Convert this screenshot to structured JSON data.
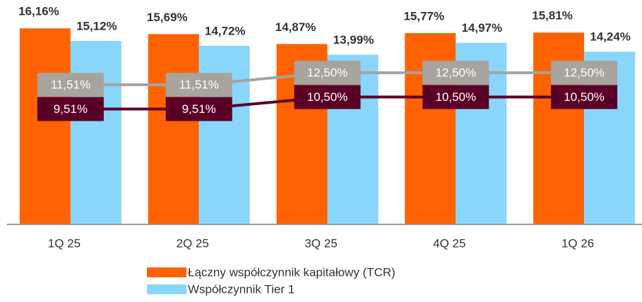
{
  "chart_data": {
    "type": "bar",
    "categories": [
      "1Q 25",
      "2Q 25",
      "3Q 25",
      "4Q 25",
      "1Q 26"
    ],
    "ylim": [
      0,
      18.5
    ],
    "series": [
      {
        "name": "Łączny współczynnik kapitałowy (TCR)",
        "color": "#ff6200",
        "values": [
          16.16,
          15.69,
          14.87,
          15.77,
          15.81
        ],
        "value_labels": [
          "16,16%",
          "15,69%",
          "14,87%",
          "15,77%",
          "15,81%"
        ]
      },
      {
        "name": "Współczynnik Tier 1",
        "color": "#89d6fd",
        "values": [
          15.12,
          14.72,
          13.99,
          14.97,
          14.24
        ],
        "value_labels": [
          "15,12%",
          "14,72%",
          "13,99%",
          "14,97%",
          "14,24%"
        ]
      },
      {
        "type": "line",
        "color": "#a8a39d",
        "values": [
          11.51,
          11.51,
          12.5,
          12.5,
          12.5
        ],
        "value_labels": [
          "11,51%",
          "11,51%",
          "12,50%",
          "12,50%",
          "12,50%"
        ]
      },
      {
        "type": "line",
        "color": "#5a0027",
        "values": [
          9.51,
          9.51,
          10.5,
          10.5,
          10.5
        ],
        "value_labels": [
          "9,51%",
          "9,51%",
          "10,50%",
          "10,50%",
          "10,50%"
        ]
      }
    ]
  }
}
